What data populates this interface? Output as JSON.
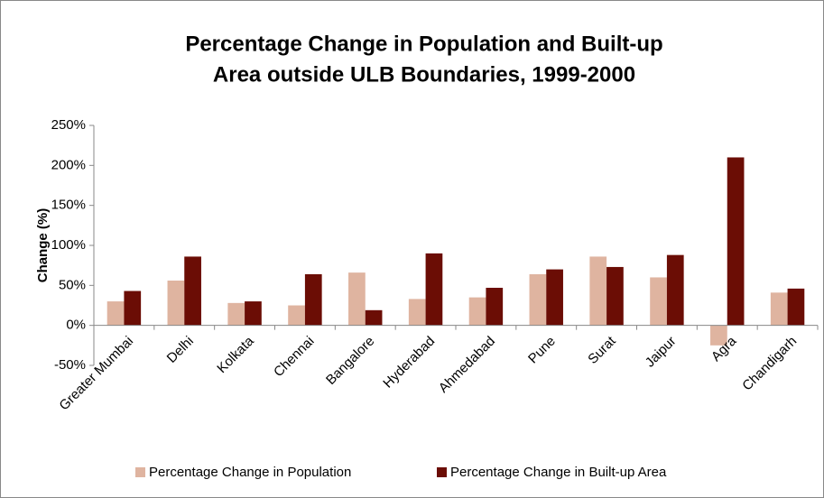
{
  "chart_data": {
    "type": "bar",
    "title": [
      "Percentage Change in Population and Built-up",
      "Area outside ULB Boundaries, 1999-2000"
    ],
    "y_label": "Change (%)",
    "categories": [
      "Greater Mumbai",
      "Delhi",
      "Kolkata",
      "Chennai",
      "Bangalore",
      "Hyderabad",
      "Ahmedabad",
      "Pune",
      "Surat",
      "Jaipur",
      "Agra",
      "Chandigarh"
    ],
    "series": [
      {
        "name": "Percentage Change in Population",
        "color": "#dfb4a0",
        "values": [
          30,
          56,
          28,
          25,
          66,
          33,
          35,
          64,
          86,
          60,
          -25,
          41
        ]
      },
      {
        "name": "Percentage Change in Built-up Area",
        "color": "#6b0d05",
        "values": [
          43,
          86,
          30,
          64,
          19,
          90,
          47,
          70,
          73,
          88,
          210,
          46
        ]
      }
    ],
    "ylim": [
      -50,
      250
    ],
    "yticks": [
      {
        "value": -50,
        "label": "-50%"
      },
      {
        "value": 0,
        "label": "0%"
      },
      {
        "value": 50,
        "label": "50%"
      },
      {
        "value": 100,
        "label": "100%"
      },
      {
        "value": 150,
        "label": "150%"
      },
      {
        "value": 200,
        "label": "200%"
      },
      {
        "value": 250,
        "label": "250%"
      }
    ],
    "legend": "bottom"
  }
}
